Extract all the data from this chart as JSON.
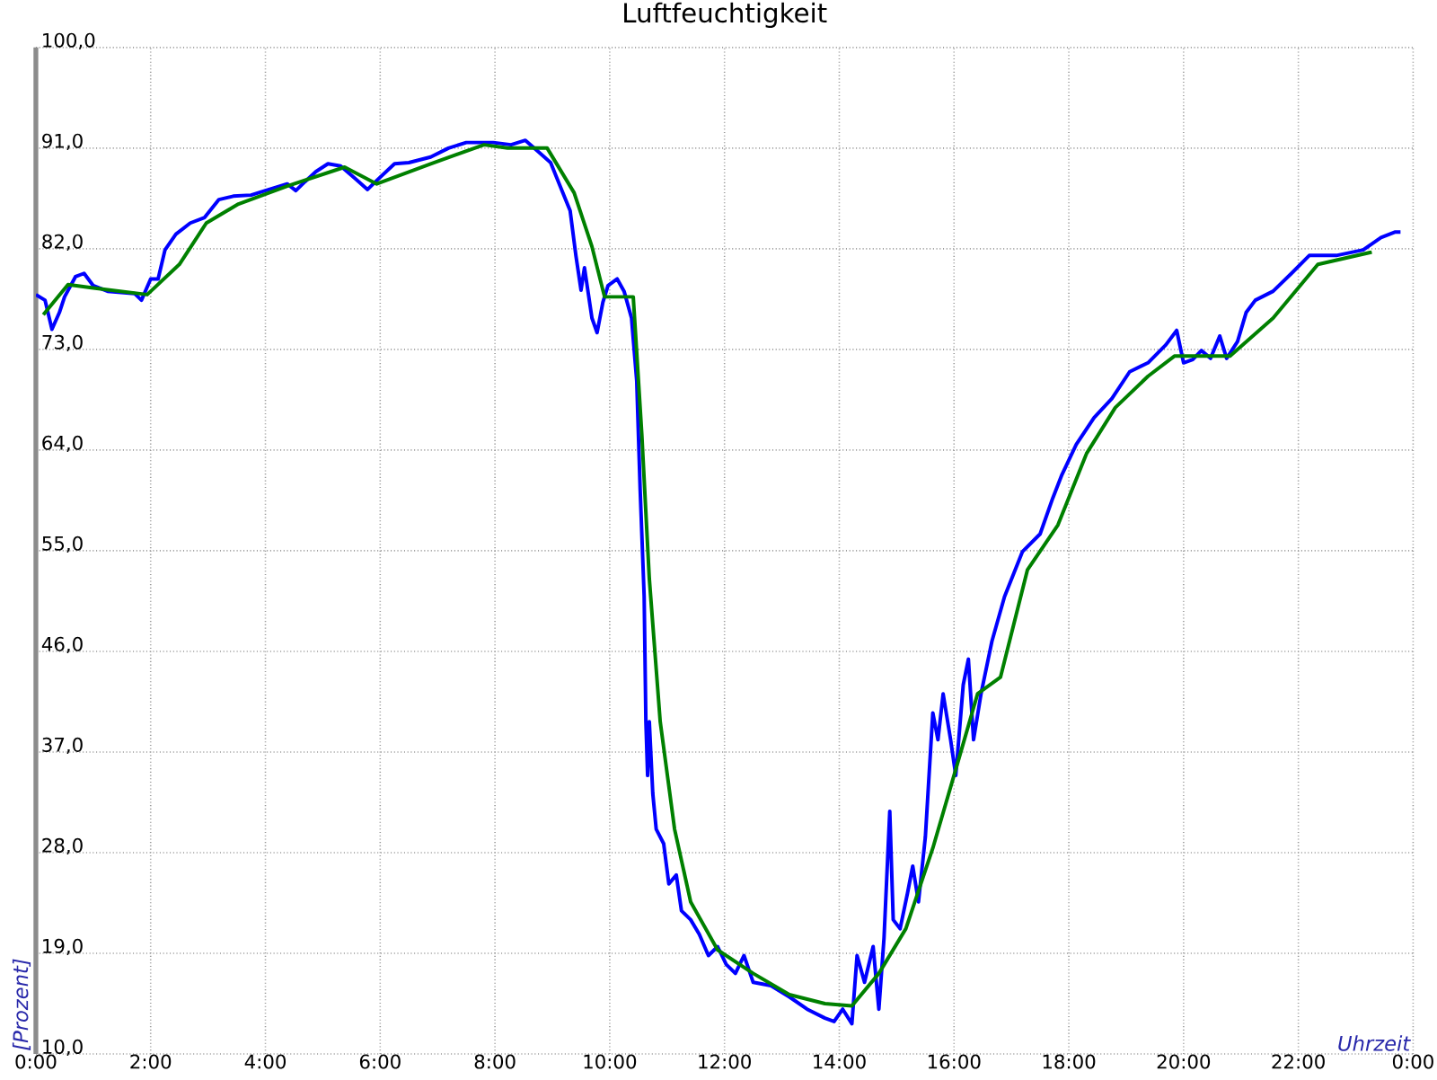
{
  "chart_data": {
    "type": "line",
    "title": "Luftfeuchtigkeit",
    "xlabel": "Uhrzeit",
    "ylabel": "[Prozent]",
    "xlim": [
      0,
      24
    ],
    "ylim": [
      10,
      100
    ],
    "grid": true,
    "marker": "none",
    "line_style": "solid",
    "xticks": [
      {
        "value": 0,
        "label": "0:00"
      },
      {
        "value": 2,
        "label": "2:00"
      },
      {
        "value": 4,
        "label": "4:00"
      },
      {
        "value": 6,
        "label": "6:00"
      },
      {
        "value": 8,
        "label": "8:00"
      },
      {
        "value": 10,
        "label": "10:00"
      },
      {
        "value": 12,
        "label": "12:00"
      },
      {
        "value": 14,
        "label": "14:00"
      },
      {
        "value": 16,
        "label": "16:00"
      },
      {
        "value": 18,
        "label": "18:00"
      },
      {
        "value": 20,
        "label": "20:00"
      },
      {
        "value": 22,
        "label": "22:00"
      },
      {
        "value": 24,
        "label": "0:00"
      }
    ],
    "yticks": [
      {
        "value": 10,
        "label": "10,0"
      },
      {
        "value": 19,
        "label": "19,0"
      },
      {
        "value": 28,
        "label": "28,0"
      },
      {
        "value": 37,
        "label": "37,0"
      },
      {
        "value": 46,
        "label": "46,0"
      },
      {
        "value": 55,
        "label": "55,0"
      },
      {
        "value": 64,
        "label": "64,0"
      },
      {
        "value": 73,
        "label": "73,0"
      },
      {
        "value": 82,
        "label": "82,0"
      },
      {
        "value": 91,
        "label": "91,0"
      },
      {
        "value": 100,
        "label": "100,0"
      }
    ],
    "series": [
      {
        "color": "#0000ff",
        "x": [
          0,
          0.16,
          0.28,
          0.41,
          0.5,
          0.69,
          0.84,
          1.0,
          1.25,
          1.72,
          1.84,
          2.0,
          2.13,
          2.25,
          2.44,
          2.69,
          2.94,
          3.19,
          3.44,
          3.75,
          4.0,
          4.38,
          4.53,
          4.69,
          4.88,
          5.09,
          5.31,
          5.56,
          5.78,
          5.94,
          6.25,
          6.5,
          6.88,
          7.19,
          7.5,
          7.97,
          8.28,
          8.53,
          8.75,
          8.97,
          9.16,
          9.31,
          9.41,
          9.5,
          9.56,
          9.69,
          9.78,
          9.88,
          9.97,
          10.13,
          10.25,
          10.38,
          10.47,
          10.53,
          10.6,
          10.63,
          10.66,
          10.69,
          10.75,
          10.81,
          10.94,
          11.03,
          11.16,
          11.25,
          11.41,
          11.56,
          11.72,
          11.88,
          12.03,
          12.19,
          12.34,
          12.5,
          12.81,
          13.13,
          13.44,
          13.75,
          13.91,
          14.06,
          14.22,
          14.31,
          14.44,
          14.59,
          14.69,
          14.78,
          14.88,
          14.94,
          15.06,
          15.19,
          15.28,
          15.38,
          15.5,
          15.63,
          15.72,
          15.81,
          15.94,
          16.03,
          16.16,
          16.25,
          16.34,
          16.47,
          16.66,
          16.88,
          17.19,
          17.5,
          17.72,
          17.88,
          18.13,
          18.44,
          18.75,
          19.06,
          19.38,
          19.69,
          19.88,
          20.0,
          20.16,
          20.31,
          20.47,
          20.63,
          20.75,
          20.94,
          21.09,
          21.25,
          21.56,
          21.88,
          22.19,
          22.66,
          23.13,
          23.44,
          23.69,
          23.78
        ],
        "values": [
          77.9,
          77.4,
          74.8,
          76.3,
          77.7,
          79.5,
          79.8,
          78.7,
          78.2,
          78.0,
          77.4,
          79.3,
          79.3,
          81.9,
          83.3,
          84.3,
          84.8,
          86.4,
          86.7,
          86.8,
          87.2,
          87.8,
          87.2,
          88.0,
          88.9,
          89.6,
          89.4,
          88.3,
          87.3,
          88.1,
          89.6,
          89.7,
          90.2,
          91.0,
          91.5,
          91.5,
          91.3,
          91.7,
          90.7,
          89.7,
          87.3,
          85.4,
          81.4,
          78.3,
          80.3,
          75.8,
          74.5,
          77.2,
          78.7,
          79.3,
          78.2,
          75.8,
          70.2,
          60.5,
          50.9,
          39.7,
          34.9,
          39.7,
          33.3,
          30.1,
          28.8,
          25.2,
          26.0,
          22.8,
          22.0,
          20.7,
          18.8,
          19.6,
          18.0,
          17.2,
          18.8,
          16.4,
          16.1,
          15.1,
          14.0,
          13.2,
          12.9,
          14.0,
          12.7,
          18.8,
          16.4,
          19.6,
          14.0,
          20.4,
          31.7,
          22.0,
          21.2,
          24.4,
          26.8,
          23.6,
          29.4,
          40.5,
          38.1,
          42.2,
          38.1,
          34.9,
          43.0,
          45.3,
          38.1,
          42.2,
          46.9,
          50.9,
          54.9,
          56.5,
          59.7,
          61.8,
          64.5,
          66.9,
          68.6,
          71.0,
          71.8,
          73.4,
          74.7,
          71.8,
          72.1,
          72.9,
          72.2,
          74.2,
          72.2,
          73.7,
          76.3,
          77.4,
          78.2,
          79.8,
          81.4,
          81.4,
          81.9,
          83.0,
          83.5,
          83.5
        ]
      },
      {
        "color": "#008000",
        "x": [
          0.13,
          0.56,
          1.0,
          1.94,
          2.5,
          2.97,
          3.53,
          4.38,
          5.38,
          5.94,
          6.88,
          7.81,
          8.22,
          8.91,
          9.38,
          9.69,
          9.91,
          10.41,
          10.56,
          10.69,
          10.88,
          11.13,
          11.41,
          11.88,
          12.5,
          13.13,
          13.75,
          14.22,
          14.69,
          15.16,
          15.63,
          16.09,
          16.41,
          16.81,
          17.28,
          17.81,
          18.31,
          18.81,
          19.38,
          19.84,
          20.81,
          21.56,
          22.34,
          23.28
        ],
        "values": [
          76.1,
          78.8,
          78.5,
          77.9,
          80.6,
          84.3,
          86.0,
          87.6,
          89.3,
          87.8,
          89.6,
          91.3,
          91.0,
          91.0,
          87.0,
          82.2,
          77.7,
          77.7,
          65.3,
          52.5,
          39.7,
          30.1,
          23.6,
          19.3,
          17.2,
          15.3,
          14.5,
          14.3,
          17.2,
          21.2,
          28.4,
          36.5,
          42.2,
          43.7,
          53.3,
          57.3,
          63.7,
          67.8,
          70.6,
          72.4,
          72.4,
          75.8,
          80.6,
          81.7
        ]
      }
    ]
  }
}
